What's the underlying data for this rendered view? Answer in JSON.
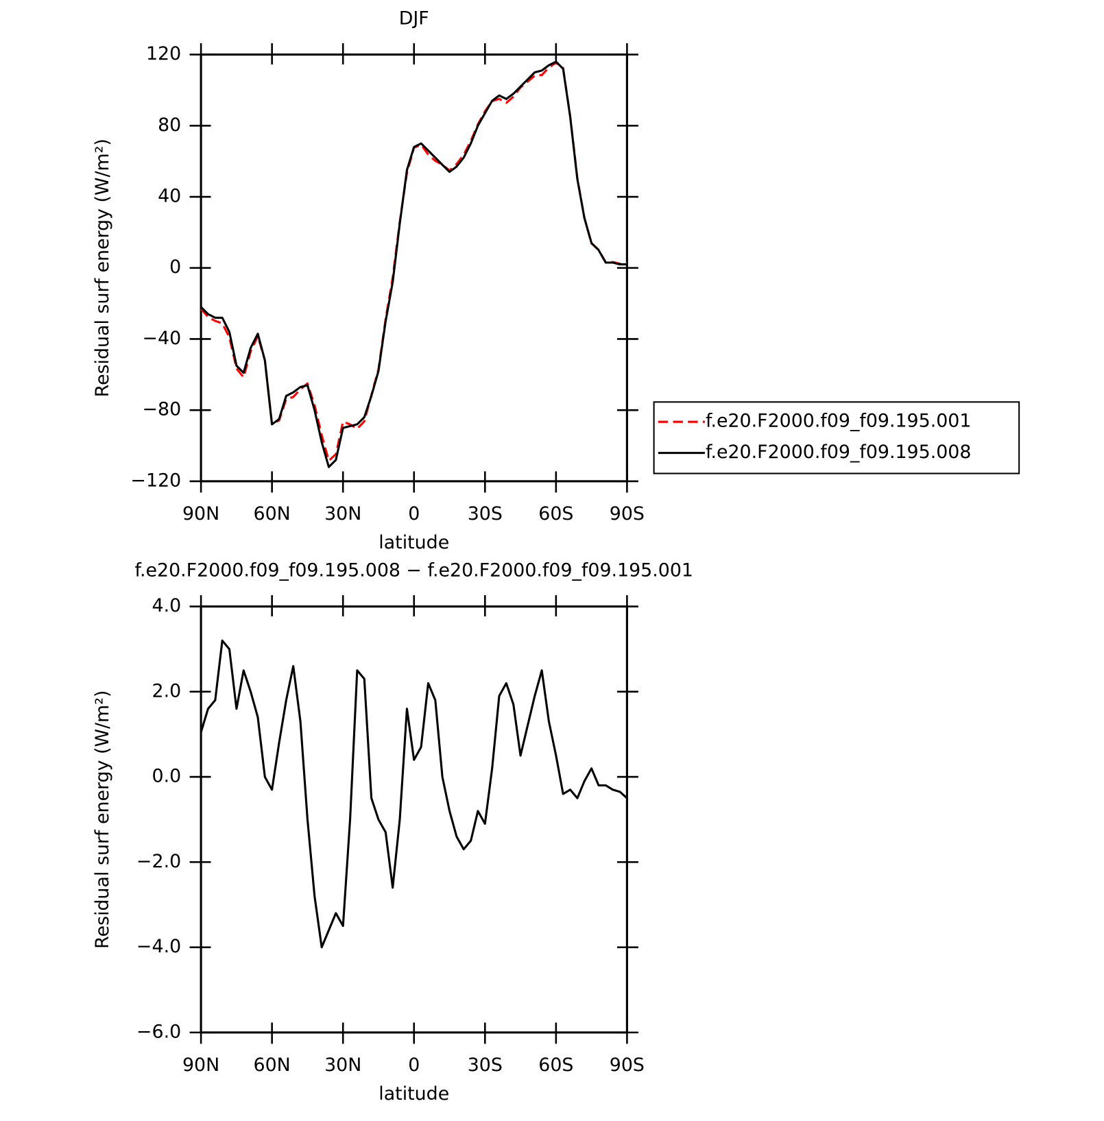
{
  "chart_data": [
    {
      "type": "line",
      "title": "DJF",
      "xlabel": "latitude",
      "ylabel": "Residual surf energy (W/m²)",
      "x": [
        90,
        87,
        84,
        81,
        78,
        75,
        72,
        69,
        66,
        63,
        60,
        57,
        54,
        51,
        48,
        45,
        42,
        39,
        36,
        33,
        30,
        27,
        24,
        21,
        18,
        15,
        12,
        9,
        6,
        3,
        0,
        -3,
        -6,
        -9,
        -12,
        -15,
        -18,
        -21,
        -24,
        -27,
        -30,
        -33,
        -36,
        -39,
        -42,
        -45,
        -48,
        -51,
        -54,
        -57,
        -60,
        -63,
        -66,
        -69,
        -72,
        -75,
        -78,
        -81,
        -84,
        -87,
        -90
      ],
      "series": [
        {
          "name": "f.e20.F2000.f09_f09.195.001",
          "color": "#ff0000",
          "dashed": true,
          "values": [
            -23,
            -27.6,
            -29.8,
            -31.2,
            -39,
            -56.6,
            -61.5,
            -47,
            -38.4,
            -52,
            -87.7,
            -85.8,
            -73.8,
            -72.6,
            -68.3,
            -65,
            -77.2,
            -94,
            -108.4,
            -104.8,
            -86.5,
            -88,
            -90.5,
            -86.3,
            -71.5,
            -57,
            -28.7,
            -5.4,
            26,
            53.4,
            67.6,
            69.3,
            63.8,
            60.2,
            58,
            54.8,
            58.4,
            63.7,
            71.5,
            80.8,
            88.1,
            93.8,
            95.1,
            92.8,
            96.3,
            101.5,
            104.8,
            108.1,
            108.5,
            112.7,
            115.5,
            112.4,
            85.3,
            50.5,
            28.1,
            13.8,
            10.2,
            3.2,
            3.3,
            2.35,
            2.5
          ]
        },
        {
          "name": "f.e20.F2000.f09_f09.195.008",
          "color": "#000000",
          "dashed": false,
          "values": [
            -22,
            -26,
            -28,
            -28,
            -36,
            -55,
            -59,
            -45,
            -37,
            -52,
            -88,
            -85,
            -72,
            -70,
            -67,
            -66,
            -80,
            -98,
            -112,
            -108,
            -90,
            -89,
            -88,
            -84,
            -72,
            -58,
            -30,
            -8,
            25,
            55,
            68,
            70,
            66,
            62,
            58,
            54,
            57,
            62,
            70,
            80,
            87,
            94,
            97,
            95,
            98,
            102,
            106,
            110,
            111,
            114,
            116,
            112,
            85,
            50,
            28,
            14,
            10,
            3,
            3,
            2,
            2
          ]
        }
      ],
      "xlim": [
        90,
        -90
      ],
      "xticks": [
        {
          "value": 90,
          "label": "90N"
        },
        {
          "value": 60,
          "label": "60N"
        },
        {
          "value": 30,
          "label": "30N"
        },
        0,
        {
          "value": -30,
          "label": "30S"
        },
        {
          "value": -60,
          "label": "60S"
        },
        {
          "value": -90,
          "label": "90S"
        }
      ],
      "ylim": [
        -120,
        120
      ],
      "yticks": [
        {
          "value": -120,
          "label": "−120"
        },
        {
          "value": -80,
          "label": "−80"
        },
        {
          "value": -40,
          "label": "−40"
        },
        0,
        40,
        80,
        120
      ],
      "legend": "right"
    },
    {
      "type": "line",
      "title": "f.e20.F2000.f09_f09.195.008 − f.e20.F2000.f09_f09.195.001",
      "xlabel": "latitude",
      "ylabel": "Residual surf energy (W/m²)",
      "x": [
        90,
        87,
        84,
        81,
        78,
        75,
        72,
        69,
        66,
        63,
        60,
        57,
        54,
        51,
        48,
        45,
        42,
        39,
        36,
        33,
        30,
        27,
        24,
        21,
        18,
        15,
        12,
        9,
        6,
        3,
        0,
        -3,
        -6,
        -9,
        -12,
        -15,
        -18,
        -21,
        -24,
        -27,
        -30,
        -33,
        -36,
        -39,
        -42,
        -45,
        -48,
        -51,
        -54,
        -57,
        -60,
        -63,
        -66,
        -69,
        -72,
        -75,
        -78,
        -81,
        -84,
        -87,
        -90
      ],
      "series": [
        {
          "color": "#000000",
          "dashed": false,
          "values": [
            1.05,
            1.6,
            1.8,
            3.2,
            3.0,
            1.6,
            2.5,
            2.0,
            1.4,
            0.0,
            -0.3,
            0.8,
            1.8,
            2.6,
            1.3,
            -1.0,
            -2.8,
            -4.0,
            -3.6,
            -3.2,
            -3.5,
            -1.0,
            2.5,
            2.3,
            -0.5,
            -1.0,
            -1.3,
            -2.6,
            -1.0,
            1.6,
            0.4,
            0.7,
            2.2,
            1.8,
            0.0,
            -0.8,
            -1.4,
            -1.7,
            -1.5,
            -0.8,
            -1.1,
            0.2,
            1.9,
            2.2,
            1.7,
            0.5,
            1.2,
            1.9,
            2.5,
            1.3,
            0.5,
            -0.4,
            -0.3,
            -0.5,
            -0.1,
            0.2,
            -0.2,
            -0.2,
            -0.3,
            -0.35,
            -0.5
          ]
        }
      ],
      "xlim": [
        90,
        -90
      ],
      "xticks": [
        {
          "value": 90,
          "label": "90N"
        },
        {
          "value": 60,
          "label": "60N"
        },
        {
          "value": 30,
          "label": "30N"
        },
        0,
        {
          "value": -30,
          "label": "30S"
        },
        {
          "value": -60,
          "label": "60S"
        },
        {
          "value": -90,
          "label": "90S"
        }
      ],
      "ylim": [
        -6,
        4
      ],
      "yticks": [
        {
          "value": -6,
          "label": "−6.0"
        },
        {
          "value": -4,
          "label": "−4.0"
        },
        {
          "value": -2,
          "label": "−2.0"
        },
        {
          "value": 0,
          "label": "0.0"
        },
        {
          "value": 2,
          "label": "2.0"
        },
        {
          "value": 4,
          "label": "4.0"
        }
      ]
    }
  ]
}
